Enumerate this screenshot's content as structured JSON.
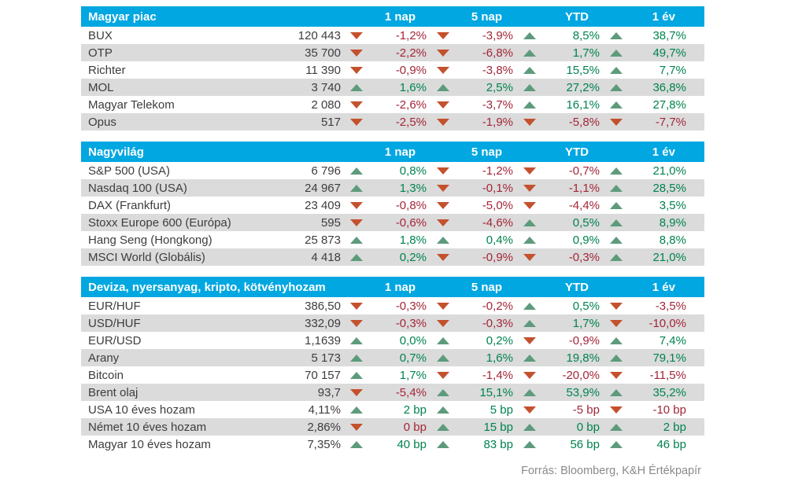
{
  "colors": {
    "header_bg": "#00a7e1",
    "stripe": "#dbdbdb",
    "positive_text": "#00834e",
    "negative_text": "#a32638",
    "triangle_up": "#5d9b7c",
    "triangle_down": "#c4512e"
  },
  "footer": {
    "source": "Forrás: Bloomberg, K&H Értékpapír"
  },
  "chart_data": [
    {
      "type": "table",
      "title": "Magyar piac",
      "columns": [
        "1 nap",
        "5 nap",
        "YTD",
        "1 év"
      ],
      "rows": [
        {
          "name": "BUX",
          "value": "120 443",
          "changes": [
            {
              "dir": "down",
              "val": "-1,2%"
            },
            {
              "dir": "down",
              "val": "-3,9%"
            },
            {
              "dir": "up",
              "val": "8,5%"
            },
            {
              "dir": "up",
              "val": "38,7%"
            }
          ]
        },
        {
          "name": "OTP",
          "value": "35 700",
          "changes": [
            {
              "dir": "down",
              "val": "-2,2%"
            },
            {
              "dir": "down",
              "val": "-6,8%"
            },
            {
              "dir": "up",
              "val": "1,7%"
            },
            {
              "dir": "up",
              "val": "49,7%"
            }
          ]
        },
        {
          "name": "Richter",
          "value": "11 390",
          "changes": [
            {
              "dir": "down",
              "val": "-0,9%"
            },
            {
              "dir": "down",
              "val": "-3,8%"
            },
            {
              "dir": "up",
              "val": "15,5%"
            },
            {
              "dir": "up",
              "val": "7,7%"
            }
          ]
        },
        {
          "name": "MOL",
          "value": "3 740",
          "changes": [
            {
              "dir": "up",
              "val": "1,6%"
            },
            {
              "dir": "up",
              "val": "2,5%"
            },
            {
              "dir": "up",
              "val": "27,2%"
            },
            {
              "dir": "up",
              "val": "36,8%"
            }
          ]
        },
        {
          "name": "Magyar Telekom",
          "value": "2 080",
          "changes": [
            {
              "dir": "down",
              "val": "-2,6%"
            },
            {
              "dir": "down",
              "val": "-3,7%"
            },
            {
              "dir": "up",
              "val": "16,1%"
            },
            {
              "dir": "up",
              "val": "27,8%"
            }
          ]
        },
        {
          "name": "Opus",
          "value": "517",
          "changes": [
            {
              "dir": "down",
              "val": "-2,5%"
            },
            {
              "dir": "down",
              "val": "-1,9%"
            },
            {
              "dir": "down",
              "val": "-5,8%"
            },
            {
              "dir": "down",
              "val": "-7,7%"
            }
          ]
        }
      ]
    },
    {
      "type": "table",
      "title": "Nagyvilág",
      "columns": [
        "1 nap",
        "5 nap",
        "YTD",
        "1 év"
      ],
      "rows": [
        {
          "name": "S&P 500 (USA)",
          "value": "6 796",
          "changes": [
            {
              "dir": "up",
              "val": "0,8%"
            },
            {
              "dir": "down",
              "val": "-1,2%"
            },
            {
              "dir": "down",
              "val": "-0,7%"
            },
            {
              "dir": "up",
              "val": "21,0%"
            }
          ]
        },
        {
          "name": "Nasdaq 100 (USA)",
          "value": "24 967",
          "changes": [
            {
              "dir": "up",
              "val": "1,3%"
            },
            {
              "dir": "down",
              "val": "-0,1%"
            },
            {
              "dir": "down",
              "val": "-1,1%"
            },
            {
              "dir": "up",
              "val": "28,5%"
            }
          ]
        },
        {
          "name": "DAX (Frankfurt)",
          "value": "23 409",
          "changes": [
            {
              "dir": "down",
              "val": "-0,8%"
            },
            {
              "dir": "down",
              "val": "-5,0%"
            },
            {
              "dir": "down",
              "val": "-4,4%"
            },
            {
              "dir": "up",
              "val": "3,5%"
            }
          ]
        },
        {
          "name": "Stoxx Europe 600 (Európa)",
          "value": "595",
          "changes": [
            {
              "dir": "down",
              "val": "-0,6%"
            },
            {
              "dir": "down",
              "val": "-4,6%"
            },
            {
              "dir": "up",
              "val": "0,5%"
            },
            {
              "dir": "up",
              "val": "8,9%"
            }
          ]
        },
        {
          "name": "Hang Seng (Hongkong)",
          "value": "25 873",
          "changes": [
            {
              "dir": "up",
              "val": "1,8%"
            },
            {
              "dir": "up",
              "val": "0,4%"
            },
            {
              "dir": "up",
              "val": "0,9%"
            },
            {
              "dir": "up",
              "val": "8,8%"
            }
          ]
        },
        {
          "name": "MSCI World (Globális)",
          "value": "4 418",
          "changes": [
            {
              "dir": "up",
              "val": "0,2%"
            },
            {
              "dir": "down",
              "val": "-0,9%"
            },
            {
              "dir": "down",
              "val": "-0,3%"
            },
            {
              "dir": "up",
              "val": "21,0%"
            }
          ]
        }
      ]
    },
    {
      "type": "table",
      "title": "Deviza, nyersanyag, kripto, kötvényhozam",
      "columns": [
        "1 nap",
        "5 nap",
        "YTD",
        "1 év"
      ],
      "rows": [
        {
          "name": "EUR/HUF",
          "value": "386,50",
          "changes": [
            {
              "dir": "down",
              "val": "-0,3%"
            },
            {
              "dir": "down",
              "val": "-0,2%"
            },
            {
              "dir": "up",
              "val": "0,5%"
            },
            {
              "dir": "down",
              "val": "-3,5%"
            }
          ]
        },
        {
          "name": "USD/HUF",
          "value": "332,09",
          "changes": [
            {
              "dir": "down",
              "val": "-0,3%"
            },
            {
              "dir": "down",
              "val": "-0,3%"
            },
            {
              "dir": "up",
              "val": "1,7%"
            },
            {
              "dir": "down",
              "val": "-10,0%"
            }
          ]
        },
        {
          "name": "EUR/USD",
          "value": "1,1639",
          "changes": [
            {
              "dir": "up",
              "val": "0,0%"
            },
            {
              "dir": "up",
              "val": "0,2%"
            },
            {
              "dir": "down",
              "val": "-0,9%"
            },
            {
              "dir": "up",
              "val": "7,4%"
            }
          ]
        },
        {
          "name": "Arany",
          "value": "5 173",
          "changes": [
            {
              "dir": "up",
              "val": "0,7%"
            },
            {
              "dir": "up",
              "val": "1,6%"
            },
            {
              "dir": "up",
              "val": "19,8%"
            },
            {
              "dir": "up",
              "val": "79,1%"
            }
          ]
        },
        {
          "name": "Bitcoin",
          "value": "70 157",
          "changes": [
            {
              "dir": "up",
              "val": "1,7%"
            },
            {
              "dir": "down",
              "val": "-1,4%"
            },
            {
              "dir": "down",
              "val": "-20,0%"
            },
            {
              "dir": "down",
              "val": "-11,5%"
            }
          ]
        },
        {
          "name": "Brent olaj",
          "value": "93,7",
          "changes": [
            {
              "dir": "down",
              "val": "-5,4%"
            },
            {
              "dir": "up",
              "val": "15,1%"
            },
            {
              "dir": "up",
              "val": "53,9%"
            },
            {
              "dir": "up",
              "val": "35,2%"
            }
          ]
        },
        {
          "name": "USA 10 éves hozam",
          "value": "4,11%",
          "changes": [
            {
              "dir": "up",
              "val": "2 bp"
            },
            {
              "dir": "up",
              "val": "5 bp"
            },
            {
              "dir": "down",
              "val": "-5 bp"
            },
            {
              "dir": "down",
              "val": "-10 bp"
            }
          ]
        },
        {
          "name": "Német 10 éves hozam",
          "value": "2,86%",
          "changes": [
            {
              "dir": "down",
              "val": "0 bp"
            },
            {
              "dir": "up",
              "val": "15 bp"
            },
            {
              "dir": "up",
              "val": "0 bp"
            },
            {
              "dir": "up",
              "val": "2 bp"
            }
          ]
        },
        {
          "name": "Magyar 10 éves hozam",
          "value": "7,35%",
          "changes": [
            {
              "dir": "up",
              "val": "40 bp"
            },
            {
              "dir": "up",
              "val": "83 bp"
            },
            {
              "dir": "up",
              "val": "56 bp"
            },
            {
              "dir": "up",
              "val": "46 bp"
            }
          ]
        }
      ]
    }
  ]
}
